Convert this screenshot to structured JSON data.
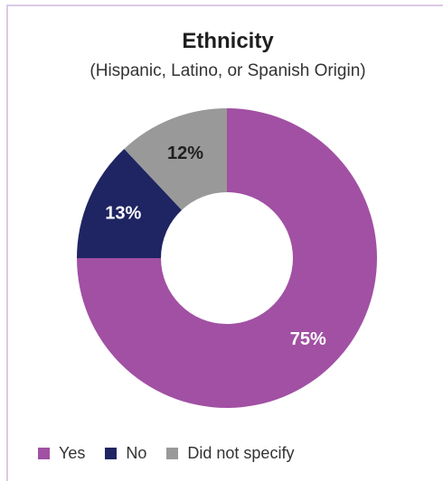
{
  "chart_data": {
    "type": "pie",
    "title": "Ethnicity",
    "subtitle": "(Hispanic, Latino, or Spanish Origin)",
    "categories": [
      "Yes",
      "No",
      "Did not specify"
    ],
    "values": [
      75,
      13,
      12
    ],
    "labels": [
      "75%",
      "13%",
      "12%"
    ],
    "colors": [
      "#a150a3",
      "#1f2562",
      "#999999"
    ],
    "donut": true,
    "legend_position": "bottom-left"
  }
}
